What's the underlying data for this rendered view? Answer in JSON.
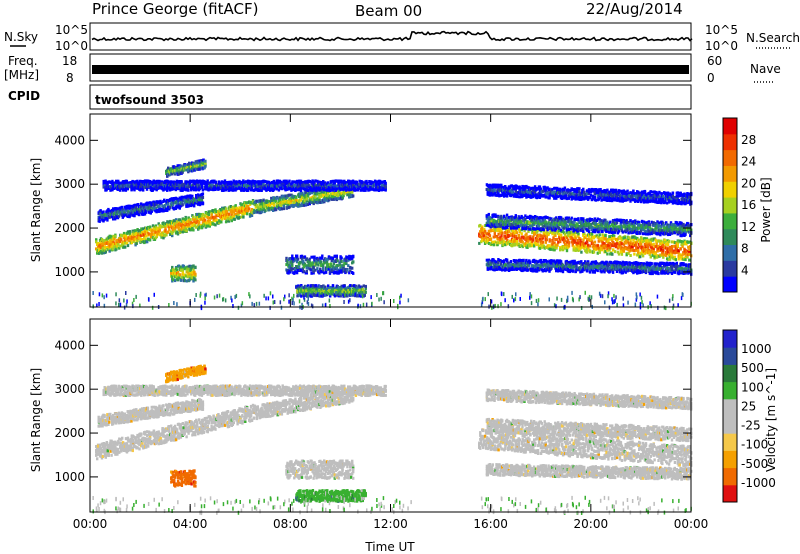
{
  "header": {
    "station": "Prince George (fitACF)",
    "beam": "Beam 00",
    "date": "22/Aug/2014"
  },
  "strips": {
    "nsky": {
      "label": "N.Sky",
      "tick_top": "10^5",
      "tick_bottom": "10^0",
      "right_label": "N.Search",
      "right_tick_top": "10^5",
      "right_tick_bottom": "10^0"
    },
    "freq": {
      "label_line1": "Freq.",
      "label_line2": "[MHz]",
      "tick_top": "18",
      "tick_bottom": "8",
      "right_label": "Nave",
      "right_tick_top": "60",
      "right_tick_bottom": "0"
    },
    "cpid": {
      "label": "CPID",
      "value": "twofsound 3503"
    }
  },
  "colors": {
    "power_scale": [
      "#0000ff",
      "#2a3aa0",
      "#2f6ea8",
      "#2f8a5a",
      "#3cae3c",
      "#a6d020",
      "#f0d000",
      "#f39a00",
      "#f26a00",
      "#ee3000",
      "#e00000"
    ],
    "velocity_scale": [
      "#e01010",
      "#f06a00",
      "#f5a000",
      "#f5c84a",
      "#bebebe",
      "#bebebe",
      "#38b030",
      "#2a7a3a",
      "#2a4a9a",
      "#2222cc"
    ]
  },
  "chart_data": [
    {
      "type": "heatmap",
      "panel": "power",
      "title": "",
      "xlabel": "",
      "ylabel": "Slant Range [km]",
      "x_ticks": [
        "00:00",
        "04:00",
        "08:00",
        "12:00",
        "16:00",
        "20:00",
        "00:00"
      ],
      "y_ticks": [
        1000,
        2000,
        3000,
        4000
      ],
      "ylim": [
        200,
        4600
      ],
      "colorbar": {
        "label": "Power [dB]",
        "ticks": [
          4,
          8,
          12,
          16,
          20,
          24,
          28
        ]
      }
    },
    {
      "type": "heatmap",
      "panel": "velocity",
      "title": "",
      "xlabel": "Time UT",
      "ylabel": "Slant Range [km]",
      "x_ticks": [
        "00:00",
        "04:00",
        "08:00",
        "12:00",
        "16:00",
        "20:00",
        "00:00"
      ],
      "y_ticks": [
        1000,
        2000,
        3000,
        4000
      ],
      "ylim": [
        200,
        4600
      ],
      "colorbar": {
        "label": "Velocity [m s^-1]",
        "ticks": [
          1000,
          500,
          100,
          25,
          -25,
          -100,
          -500,
          -1000
        ]
      }
    }
  ]
}
